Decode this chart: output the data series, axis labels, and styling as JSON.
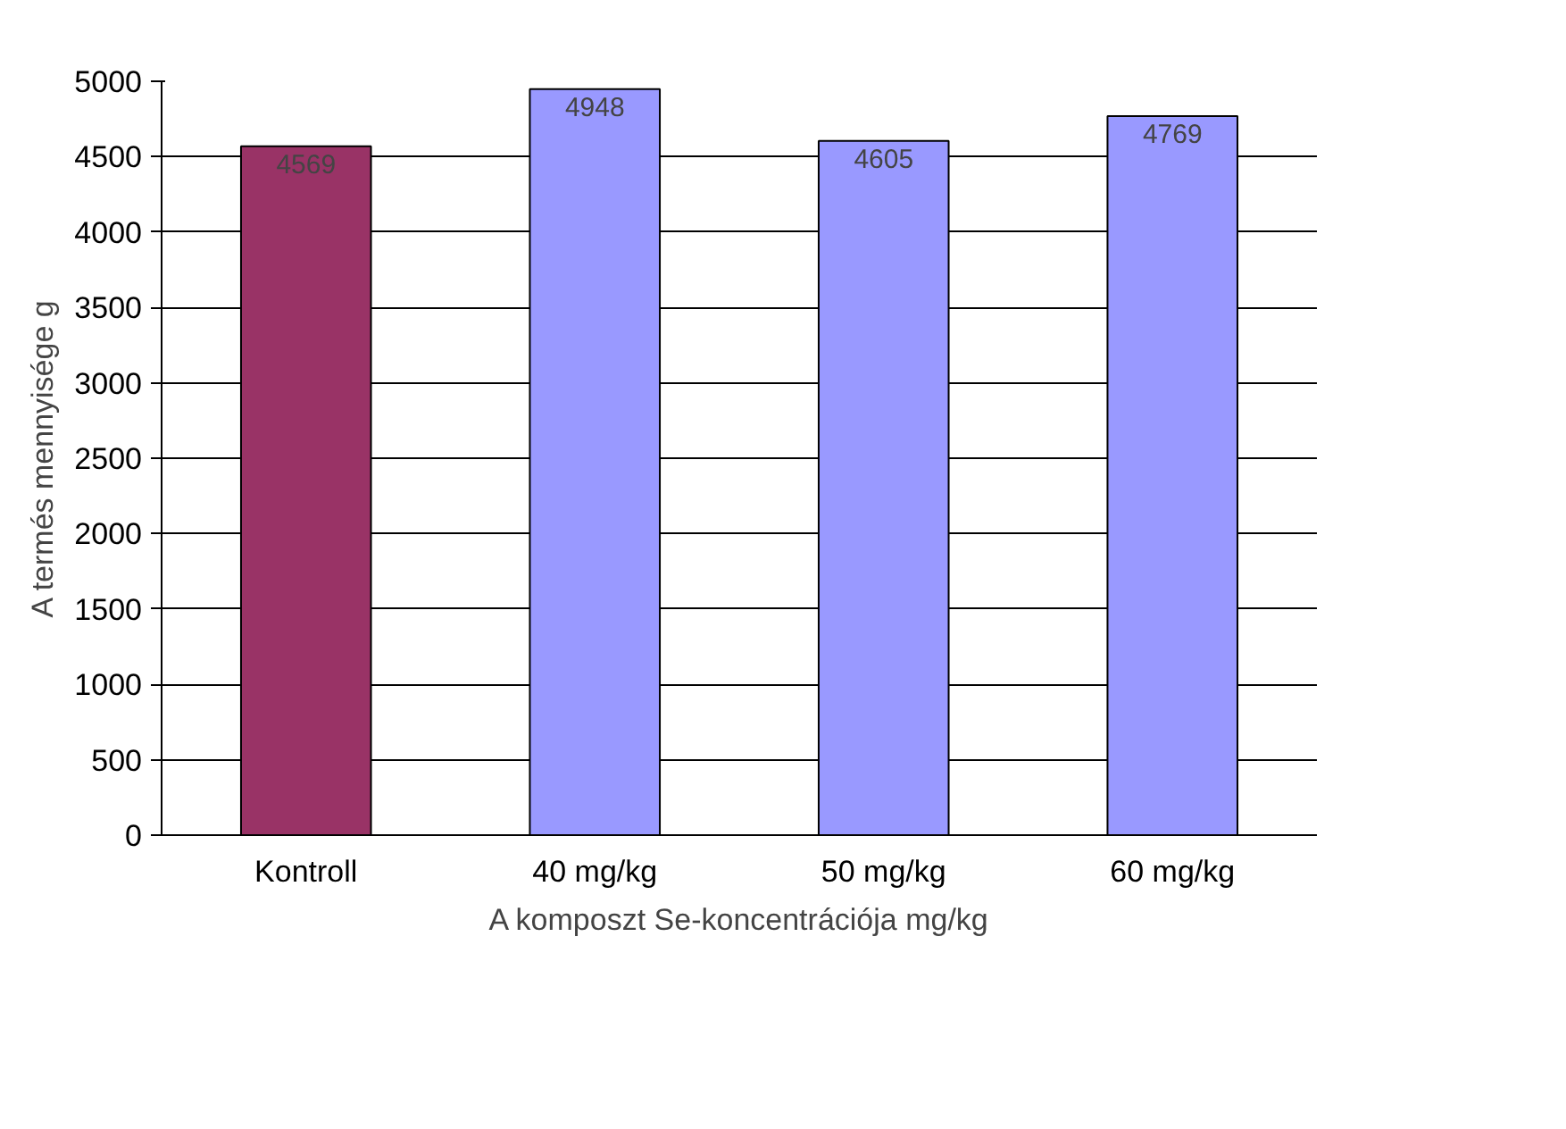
{
  "chart_data": {
    "type": "bar",
    "categories": [
      "Kontroll",
      "40 mg/kg",
      "50 mg/kg",
      "60 mg/kg"
    ],
    "values": [
      4569,
      4948,
      4605,
      4769
    ],
    "colors": [
      "#993366",
      "#9999ff",
      "#9999ff",
      "#9999ff"
    ],
    "xlabel": "A komposzt Se-koncentrációja mg/kg",
    "ylabel": "A termés mennyisége g",
    "ylim": [
      0,
      5000
    ],
    "yticks": [
      0,
      500,
      1000,
      1500,
      2000,
      2500,
      3000,
      3500,
      4000,
      4500,
      5000
    ],
    "grid": "y",
    "data_labels": true
  }
}
